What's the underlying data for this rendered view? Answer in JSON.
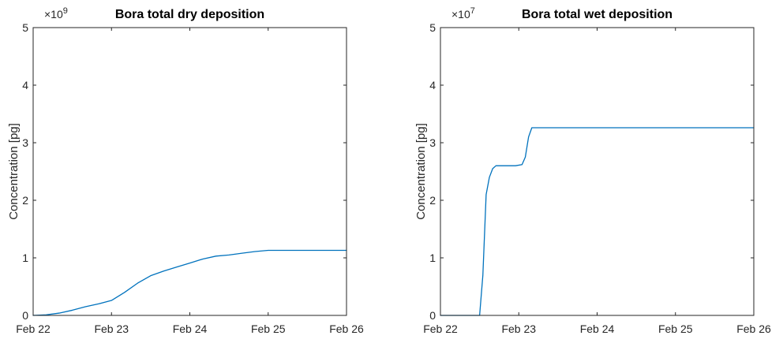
{
  "colors": {
    "series": "#0072bd",
    "axis": "#262626",
    "title": "#000000",
    "background": "#ffffff"
  },
  "chart_data": [
    {
      "type": "line",
      "title": "Bora total dry deposition",
      "xlabel": "",
      "ylabel": "Concentration [pg]",
      "y_exponent_base": "10",
      "y_exponent_power": "9",
      "xlim": [
        "2025-02-22",
        "2025-02-26"
      ],
      "ylim": [
        0,
        5
      ],
      "x_ticks": [
        "Feb 22",
        "Feb 23",
        "Feb 24",
        "Feb 25",
        "Feb 26"
      ],
      "y_ticks": [
        "0",
        "1",
        "2",
        "3",
        "4",
        "5"
      ],
      "grid": false,
      "series": [
        {
          "x": [
            "2025-02-22T00:00",
            "2025-02-22T04:00",
            "2025-02-22T08:00",
            "2025-02-22T12:00",
            "2025-02-22T16:00",
            "2025-02-22T20:00",
            "2025-02-23T00:00",
            "2025-02-23T04:00",
            "2025-02-23T08:00",
            "2025-02-23T12:00",
            "2025-02-23T16:00",
            "2025-02-23T20:00",
            "2025-02-24T00:00",
            "2025-02-24T04:00",
            "2025-02-24T08:00",
            "2025-02-24T12:00",
            "2025-02-24T16:00",
            "2025-02-24T20:00",
            "2025-02-25T00:00",
            "2025-02-25T06:00",
            "2025-02-25T12:00",
            "2025-02-25T18:00",
            "2025-02-26T00:00"
          ],
          "values": [
            0.0,
            0.01,
            0.04,
            0.09,
            0.15,
            0.2,
            0.26,
            0.4,
            0.56,
            0.69,
            0.77,
            0.84,
            0.91,
            0.98,
            1.03,
            1.05,
            1.08,
            1.11,
            1.13,
            1.13,
            1.13,
            1.13,
            1.13
          ]
        }
      ]
    },
    {
      "type": "line",
      "title": "Bora total wet deposition",
      "xlabel": "",
      "ylabel": "Concentration [pg]",
      "y_exponent_base": "10",
      "y_exponent_power": "7",
      "xlim": [
        "2025-02-22",
        "2025-02-26"
      ],
      "ylim": [
        0,
        5
      ],
      "x_ticks": [
        "Feb 22",
        "Feb 23",
        "Feb 24",
        "Feb 25",
        "Feb 26"
      ],
      "y_ticks": [
        "0",
        "1",
        "2",
        "3",
        "4",
        "5"
      ],
      "grid": false,
      "series": [
        {
          "x": [
            "2025-02-22T00:00",
            "2025-02-22T12:00",
            "2025-02-22T13:00",
            "2025-02-22T14:00",
            "2025-02-22T15:00",
            "2025-02-22T16:00",
            "2025-02-22T17:00",
            "2025-02-22T18:00",
            "2025-02-22T20:00",
            "2025-02-22T23:00",
            "2025-02-23T01:00",
            "2025-02-23T02:00",
            "2025-02-23T03:00",
            "2025-02-23T04:00",
            "2025-02-23T05:00",
            "2025-02-23T06:00",
            "2025-02-24T00:00",
            "2025-02-25T00:00",
            "2025-02-26T00:00"
          ],
          "values": [
            0.0,
            0.0,
            0.7,
            2.1,
            2.4,
            2.55,
            2.6,
            2.6,
            2.6,
            2.6,
            2.62,
            2.75,
            3.1,
            3.26,
            3.26,
            3.26,
            3.26,
            3.26,
            3.26
          ]
        }
      ]
    }
  ]
}
